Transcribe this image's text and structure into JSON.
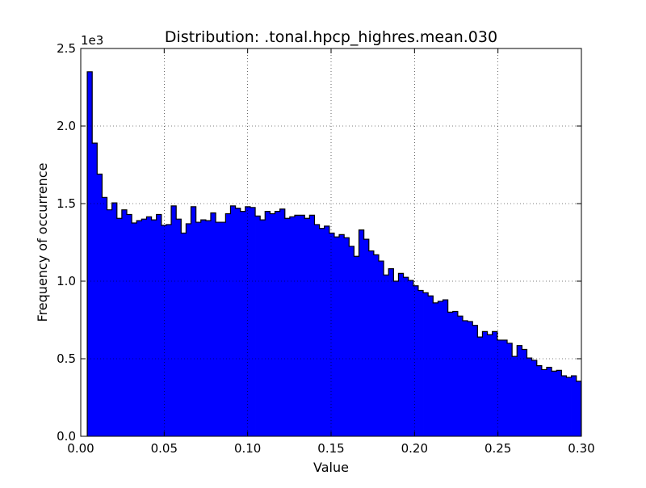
{
  "chart_data": {
    "type": "bar",
    "title": "Distribution: .tonal.hpcp_highres.mean.030",
    "xlabel": "Value",
    "ylabel": "Frequency of occurrence",
    "y_offset_label": "1e3",
    "xlim": [
      0.0,
      0.3
    ],
    "ylim": [
      0,
      2500
    ],
    "xticks": [
      {
        "value": 0.0,
        "label": "0.00"
      },
      {
        "value": 0.05,
        "label": "0.05"
      },
      {
        "value": 0.1,
        "label": "0.10"
      },
      {
        "value": 0.15,
        "label": "0.15"
      },
      {
        "value": 0.2,
        "label": "0.20"
      },
      {
        "value": 0.25,
        "label": "0.25"
      },
      {
        "value": 0.3,
        "label": "0.30"
      }
    ],
    "yticks": [
      {
        "value": 0,
        "label": "0.0"
      },
      {
        "value": 500,
        "label": "0.5"
      },
      {
        "value": 1000,
        "label": "1.0"
      },
      {
        "value": 1500,
        "label": "1.5"
      },
      {
        "value": 2000,
        "label": "2.0"
      },
      {
        "value": 2500,
        "label": "2.5"
      }
    ],
    "grid": true,
    "bar_color": "#0000ff",
    "edge_color": "#000000",
    "bin_start": 0.0039,
    "bin_width": 0.00296,
    "values": [
      2350,
      1890,
      1690,
      1540,
      1460,
      1505,
      1405,
      1460,
      1430,
      1375,
      1390,
      1400,
      1415,
      1395,
      1430,
      1360,
      1365,
      1485,
      1400,
      1310,
      1370,
      1480,
      1380,
      1395,
      1390,
      1440,
      1380,
      1380,
      1435,
      1485,
      1470,
      1450,
      1480,
      1475,
      1420,
      1395,
      1450,
      1435,
      1450,
      1465,
      1405,
      1415,
      1425,
      1425,
      1405,
      1425,
      1365,
      1340,
      1355,
      1310,
      1285,
      1300,
      1280,
      1225,
      1160,
      1330,
      1270,
      1195,
      1170,
      1130,
      1040,
      1080,
      1000,
      1050,
      1025,
      1005,
      970,
      940,
      925,
      905,
      860,
      870,
      880,
      800,
      805,
      775,
      745,
      740,
      715,
      640,
      675,
      655,
      675,
      620,
      620,
      600,
      515,
      585,
      560,
      505,
      490,
      455,
      430,
      445,
      420,
      425,
      390,
      380,
      390,
      355
    ]
  }
}
